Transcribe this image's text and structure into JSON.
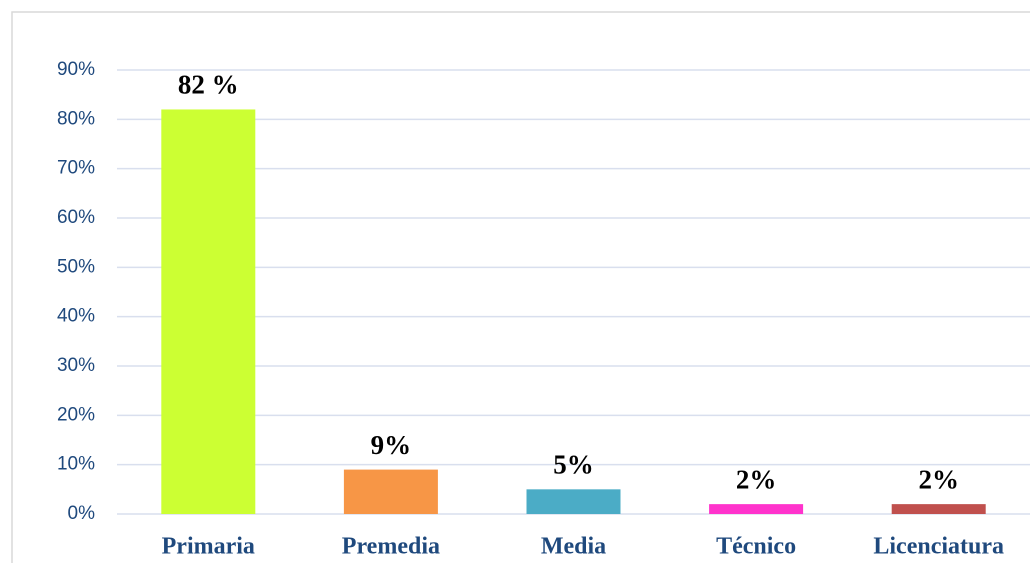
{
  "chart_data": {
    "type": "bar",
    "categories": [
      "Primaria",
      "Premedia",
      "Media",
      "Técnico",
      "Licenciatura"
    ],
    "values": [
      82,
      9,
      5,
      2,
      2
    ],
    "value_labels": [
      "82 %",
      "9%",
      "5%",
      "2%",
      "2%"
    ],
    "colors": [
      "#ccff33",
      "#f79646",
      "#4bacc6",
      "#ff33cc",
      "#c0504d"
    ],
    "ylim": [
      0,
      90
    ],
    "yticks": [
      {
        "value": 0,
        "label": "0%"
      },
      {
        "value": 10,
        "label": "10%"
      },
      {
        "value": 20,
        "label": "20%"
      },
      {
        "value": 30,
        "label": "30%"
      },
      {
        "value": 40,
        "label": "40%"
      },
      {
        "value": 50,
        "label": "50%"
      },
      {
        "value": 60,
        "label": "60%"
      },
      {
        "value": 70,
        "label": "70%"
      },
      {
        "value": 80,
        "label": "80%"
      },
      {
        "value": 90,
        "label": "90%"
      }
    ],
    "grid": true
  }
}
